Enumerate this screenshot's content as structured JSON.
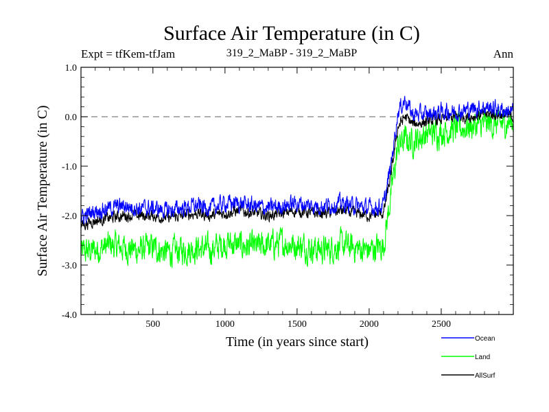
{
  "chart_data": {
    "type": "line",
    "title": "Surface Air Temperature (in C)",
    "subtitle_left": "Expt = tfKem-tfJam",
    "subtitle_center": "319_2_MaBP - 319_2_MaBP",
    "subtitle_right": "Ann",
    "xlabel": "Time (in years since start)",
    "ylabel": "Surface Air Temperature (in C)",
    "xlim": [
      1,
      3000
    ],
    "ylim": [
      -4.0,
      1.0
    ],
    "x_ticks": [
      500,
      1000,
      1500,
      2000,
      2500
    ],
    "x_tick_labels": [
      "500",
      "1000",
      "1500",
      "2000",
      "2500"
    ],
    "y_ticks": [
      -4.0,
      -3.0,
      -2.0,
      -1.0,
      0.0,
      1.0
    ],
    "y_tick_labels": [
      "-4.0",
      "-3.0",
      "-2.0",
      "-1.0",
      "0.0",
      "1.0"
    ],
    "reference_line": {
      "y": 0.0,
      "style": "dashed",
      "color": "#7f7f7f"
    },
    "x": [
      0,
      100,
      200,
      300,
      400,
      500,
      600,
      700,
      800,
      900,
      1000,
      1100,
      1200,
      1300,
      1400,
      1500,
      1600,
      1700,
      1800,
      1900,
      2000,
      2100,
      2150,
      2200,
      2250,
      2300,
      2400,
      2500,
      2600,
      2700,
      2800,
      2900,
      3000
    ],
    "series": [
      {
        "name": "Land",
        "color": "#00ff00",
        "noise": 0.22,
        "values": [
          -2.75,
          -2.7,
          -2.6,
          -2.65,
          -2.7,
          -2.65,
          -2.75,
          -2.7,
          -2.65,
          -2.7,
          -2.55,
          -2.6,
          -2.65,
          -2.6,
          -2.55,
          -2.6,
          -2.65,
          -2.7,
          -2.6,
          -2.65,
          -2.7,
          -2.6,
          -1.6,
          -0.6,
          -0.45,
          -0.5,
          -0.35,
          -0.3,
          -0.25,
          -0.2,
          -0.15,
          -0.15,
          -0.1
        ]
      },
      {
        "name": "AllSurf",
        "color": "#000000",
        "noise": 0.09,
        "values": [
          -2.2,
          -2.1,
          -2.05,
          -2.0,
          -2.0,
          -2.0,
          -2.05,
          -2.0,
          -1.95,
          -2.0,
          -1.95,
          -1.9,
          -1.95,
          -2.0,
          -1.95,
          -1.9,
          -1.95,
          -1.95,
          -1.9,
          -1.95,
          -2.0,
          -1.95,
          -1.2,
          -0.2,
          0.0,
          -0.15,
          -0.1,
          -0.05,
          0.0,
          0.0,
          0.05,
          0.05,
          0.0
        ]
      },
      {
        "name": "Ocean",
        "color": "#0000ff",
        "noise": 0.13,
        "values": [
          -2.05,
          -1.9,
          -1.85,
          -1.8,
          -1.85,
          -1.85,
          -1.9,
          -1.85,
          -1.8,
          -1.85,
          -1.75,
          -1.75,
          -1.8,
          -1.85,
          -1.8,
          -1.75,
          -1.8,
          -1.8,
          -1.75,
          -1.8,
          -1.85,
          -1.8,
          -1.0,
          0.1,
          0.35,
          0.05,
          0.05,
          0.1,
          0.1,
          0.15,
          0.2,
          0.15,
          0.1
        ]
      }
    ],
    "legend": {
      "placement": "bottom-right",
      "entries": [
        {
          "label": "Ocean",
          "color": "#0000ff"
        },
        {
          "label": "Land",
          "color": "#00ff00"
        },
        {
          "label": "AllSurf",
          "color": "#000000"
        }
      ]
    }
  }
}
